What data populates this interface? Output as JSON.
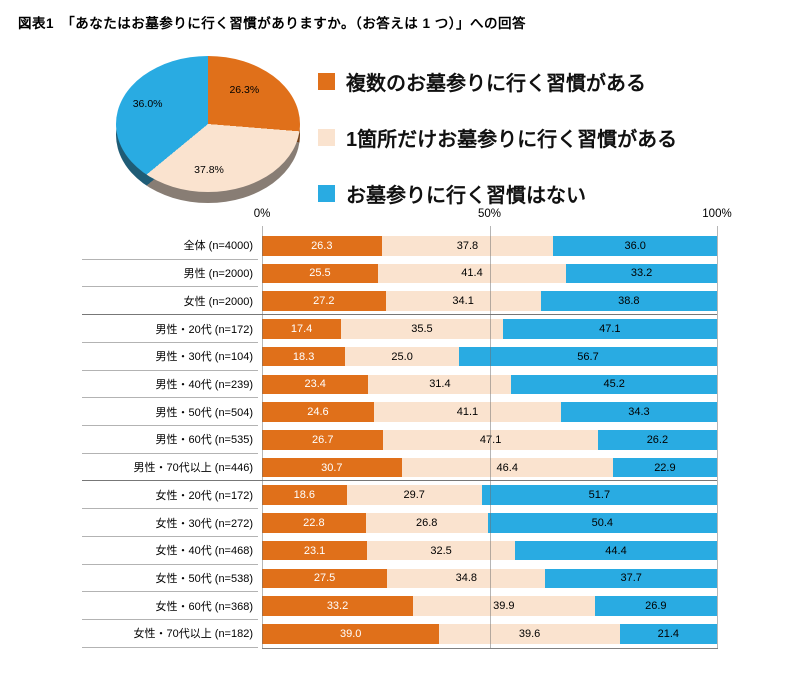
{
  "page": {
    "title": "図表1　「あなたはお墓参りに行く習慣がありますか。（お答えは 1 つ）」への回答"
  },
  "colors": {
    "multiple_habit": "#E0701A",
    "single_habit": "#FAE3CF",
    "no_habit": "#29ABE2"
  },
  "legend": [
    {
      "label": "複数のお墓参りに行く習慣がある",
      "color": "#E0701A"
    },
    {
      "label": "1箇所だけお墓参りに行く習慣がある",
      "color": "#FAE3CF"
    },
    {
      "label": "お墓参りに行く習慣はない",
      "color": "#29ABE2"
    }
  ],
  "chart_data": [
    {
      "type": "pie",
      "labels": [
        "複数のお墓参りに行く習慣がある",
        "1箇所だけお墓参りに行く習慣がある",
        "お墓参りに行く習慣はない"
      ],
      "values": [
        26.3,
        37.8,
        36.0
      ],
      "value_labels": [
        "26.3%",
        "37.8%",
        "36.0%"
      ],
      "colors": [
        "#E0701A",
        "#FAE3CF",
        "#29ABE2"
      ],
      "style": "3d-pie",
      "start_angle_deg": 0
    },
    {
      "type": "bar",
      "stacked": true,
      "orientation": "horizontal",
      "xlim": [
        0,
        100
      ],
      "x_ticks": [
        "0%",
        "50%",
        "100%"
      ],
      "tick_values": [
        0,
        50,
        100
      ],
      "grid": true,
      "categories": [
        "全体 (n=4000)",
        "男性 (n=2000)",
        "女性 (n=2000)",
        "男性・20代 (n=172)",
        "男性・30代 (n=104)",
        "男性・40代 (n=239)",
        "男性・50代 (n=504)",
        "男性・60代 (n=535)",
        "男性・70代以上 (n=446)",
        "女性・20代 (n=172)",
        "女性・30代 (n=272)",
        "女性・40代 (n=468)",
        "女性・50代 (n=538)",
        "女性・60代 (n=368)",
        "女性・70代以上 (n=182)"
      ],
      "series": [
        {
          "name": "複数のお墓参りに行く習慣がある",
          "color": "#E0701A",
          "label_color": "#ffffff",
          "values": [
            26.3,
            25.5,
            27.2,
            17.4,
            18.3,
            23.4,
            24.6,
            26.7,
            30.7,
            18.6,
            22.8,
            23.1,
            27.5,
            33.2,
            39.0
          ]
        },
        {
          "name": "1箇所だけお墓参りに行く習慣がある",
          "color": "#FAE3CF",
          "label_color": "#000000",
          "values": [
            37.8,
            41.4,
            34.1,
            35.5,
            25.0,
            31.4,
            41.1,
            47.1,
            46.4,
            29.7,
            26.8,
            32.5,
            34.8,
            39.9,
            39.6
          ]
        },
        {
          "name": "お墓参りに行く習慣はない",
          "color": "#29ABE2",
          "label_color": "#000000",
          "values": [
            36.0,
            33.2,
            38.8,
            47.1,
            56.7,
            45.2,
            34.3,
            26.2,
            22.9,
            51.7,
            50.4,
            44.4,
            37.7,
            26.9,
            21.4
          ]
        }
      ],
      "group_separators_after": [
        2,
        8
      ]
    }
  ]
}
